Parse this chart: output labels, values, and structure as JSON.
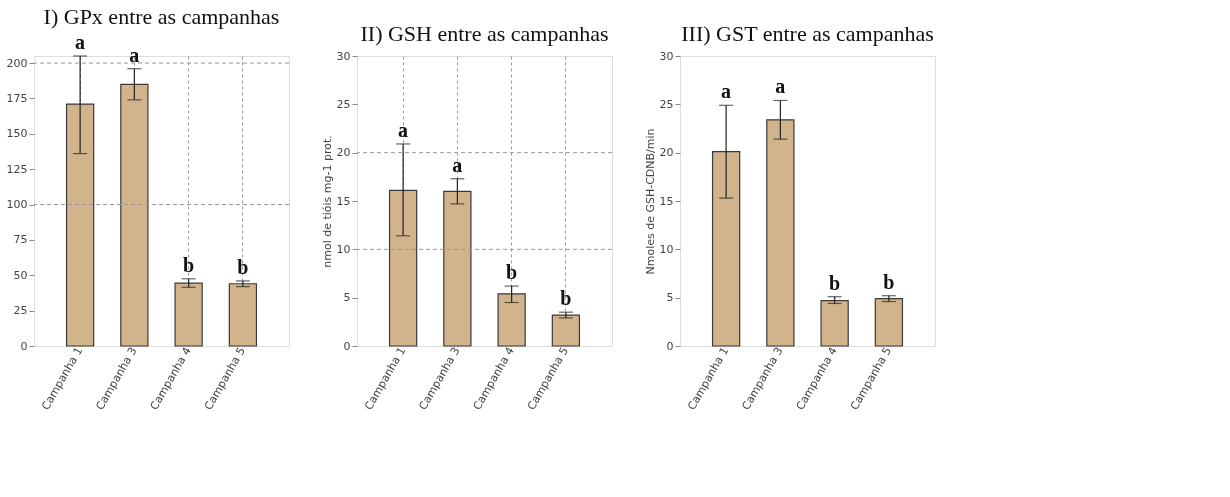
{
  "chart_data": [
    {
      "type": "bar",
      "title": "I) GPx entre as campanhas",
      "categories": [
        "Campanha 1",
        "Campanha 3",
        "Campanha 4",
        "Campanha 5"
      ],
      "series": [
        {
          "color": "#d2b48c",
          "values": [
            171,
            185,
            44.5,
            44
          ],
          "errors": [
            [
              136,
              205
            ],
            [
              174,
              196
            ],
            [
              41.5,
              47.5
            ],
            [
              42,
              46
            ]
          ]
        }
      ],
      "ylim": [
        0,
        205
      ],
      "yticks": [
        0,
        25,
        50,
        75,
        100,
        125,
        150,
        175,
        200
      ],
      "grid": "x",
      "ref_lines": [
        {
          "axis": "y",
          "value": 100,
          "color": "#999999",
          "line_style": "dashed"
        },
        {
          "axis": "y",
          "value": 200,
          "color": "#999999",
          "line_style": "dashed"
        }
      ],
      "annotations": [
        "a",
        "a",
        "b",
        "b"
      ]
    },
    {
      "type": "bar",
      "title": "II) GSH entre as campanhas",
      "ylabel": "nmol de tióis mg-1 prot.",
      "categories": [
        "Campanha 1",
        "Campanha 3",
        "Campanha 4",
        "Campanha 5"
      ],
      "series": [
        {
          "color": "#d2b48c",
          "values": [
            16.1,
            16.0,
            5.4,
            3.2
          ],
          "errors": [
            [
              11.4,
              20.9
            ],
            [
              14.7,
              17.3
            ],
            [
              4.5,
              6.2
            ],
            [
              2.9,
              3.5
            ]
          ]
        }
      ],
      "ylim": [
        0,
        30
      ],
      "yticks": [
        0,
        5,
        10,
        15,
        20,
        25,
        30
      ],
      "grid": "x",
      "ref_lines": [
        {
          "axis": "y",
          "value": 10,
          "color": "#999999",
          "line_style": "dashed"
        },
        {
          "axis": "y",
          "value": 20,
          "color": "#999999",
          "line_style": "dashed"
        }
      ],
      "annotations": [
        "a",
        "a",
        "b",
        "b"
      ]
    },
    {
      "type": "bar",
      "title": "III) GST entre as campanhas",
      "ylabel": "Nmoles de GSH-CDNB/min",
      "categories": [
        "Campanha 1",
        "Campanha 3",
        "Campanha 4",
        "Campanha 5"
      ],
      "series": [
        {
          "color": "#d2b48c",
          "values": [
            20.1,
            23.4,
            4.7,
            4.9
          ],
          "errors": [
            [
              15.3,
              24.9
            ],
            [
              21.4,
              25.4
            ],
            [
              4.4,
              5.1
            ],
            [
              4.6,
              5.2
            ]
          ]
        }
      ],
      "ylim": [
        0,
        30
      ],
      "yticks": [
        0,
        5,
        10,
        15,
        20,
        25,
        30
      ],
      "grid": false,
      "annotations": [
        "a",
        "a",
        "b",
        "b"
      ]
    }
  ]
}
